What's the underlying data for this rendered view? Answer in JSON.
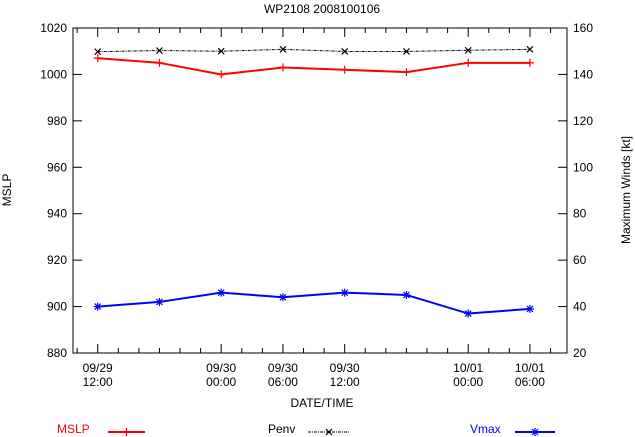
{
  "chart_data": {
    "type": "line",
    "title": "WP2108 2008100106",
    "xlabel": "DATE/TIME",
    "ylabel": "MSLP",
    "y2label": "Maximum Winds [kt]",
    "x_hours": [
      0,
      6,
      12,
      18,
      24,
      30,
      36,
      42
    ],
    "xlim_hours": [
      -2.4,
      45.6
    ],
    "x_ticks": [
      {
        "hour": 0,
        "l1": "09/29",
        "l2": "12:00"
      },
      {
        "hour": 12,
        "l1": "09/30",
        "l2": "00:00"
      },
      {
        "hour": 18,
        "l1": "09/30",
        "l2": "06:00"
      },
      {
        "hour": 24,
        "l1": "09/30",
        "l2": "12:00"
      },
      {
        "hour": 36,
        "l1": "10/01",
        "l2": "00:00"
      },
      {
        "hour": 42,
        "l1": "10/01",
        "l2": "06:00"
      }
    ],
    "ylim": [
      880,
      1020
    ],
    "yticks": [
      "880",
      "900",
      "920",
      "940",
      "960",
      "980",
      "1000",
      "1020"
    ],
    "y2lim": [
      20,
      160
    ],
    "y2ticks": [
      "20",
      "40",
      "60",
      "80",
      "100",
      "120",
      "140",
      "160"
    ],
    "series": [
      {
        "name": "MSLP",
        "axis": "left",
        "color": "#ff0000",
        "marker": "plus",
        "dash": "",
        "values": [
          1007,
          1005,
          1000,
          1003,
          1002,
          1001,
          1005,
          1005
        ]
      },
      {
        "name": "Penv",
        "axis": "left",
        "color": "#000000",
        "marker": "x",
        "dash": "3,1,1,1",
        "values": [
          1009.8,
          1010.3,
          1010,
          1010.8,
          1009.9,
          1009.9,
          1010.4,
          1010.8
        ]
      },
      {
        "name": "Vmax",
        "axis": "right",
        "color": "#0000ff",
        "marker": "star",
        "dash": "",
        "values": [
          40,
          42,
          46,
          44,
          46,
          45,
          37,
          39
        ]
      }
    ],
    "legend": "bottom"
  }
}
